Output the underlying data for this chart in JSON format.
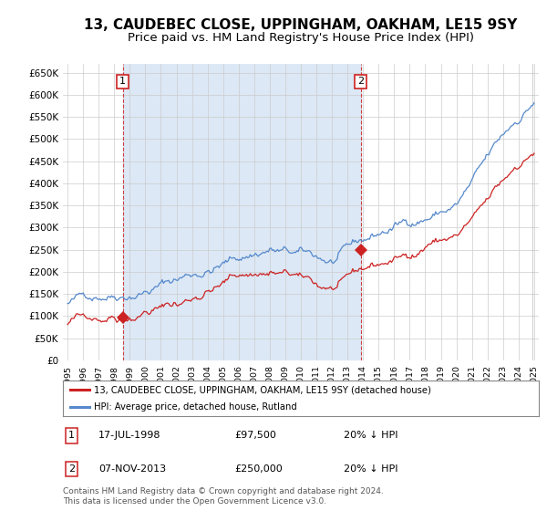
{
  "title": "13, CAUDEBEC CLOSE, UPPINGHAM, OAKHAM, LE15 9SY",
  "subtitle": "Price paid vs. HM Land Registry's House Price Index (HPI)",
  "ylim": [
    0,
    670000
  ],
  "yticks": [
    0,
    50000,
    100000,
    150000,
    200000,
    250000,
    300000,
    350000,
    400000,
    450000,
    500000,
    550000,
    600000,
    650000
  ],
  "ytick_labels": [
    "£0",
    "£50K",
    "£100K",
    "£150K",
    "£200K",
    "£250K",
    "£300K",
    "£350K",
    "£400K",
    "£450K",
    "£500K",
    "£550K",
    "£600K",
    "£650K"
  ],
  "xlim_start": 1994.7,
  "xlim_end": 2025.3,
  "hpi_color": "#5588cc",
  "price_color": "#cc2222",
  "shade_color": "#dce8f5",
  "sale1_date": 1998.54,
  "sale1_price": 97500,
  "sale2_date": 2013.85,
  "sale2_price": 250000,
  "legend_line1": "13, CAUDEBEC CLOSE, UPPINGHAM, OAKHAM, LE15 9SY (detached house)",
  "legend_line2": "HPI: Average price, detached house, Rutland",
  "annotation1_date": "17-JUL-1998",
  "annotation1_price": "£97,500",
  "annotation1_hpi": "20% ↓ HPI",
  "annotation2_date": "07-NOV-2013",
  "annotation2_price": "£250,000",
  "annotation2_hpi": "20% ↓ HPI",
  "footer": "Contains HM Land Registry data © Crown copyright and database right 2024.\nThis data is licensed under the Open Government Licence v3.0.",
  "bg_color": "#ffffff",
  "grid_color": "#cccccc",
  "title_fontsize": 11,
  "subtitle_fontsize": 9.5
}
